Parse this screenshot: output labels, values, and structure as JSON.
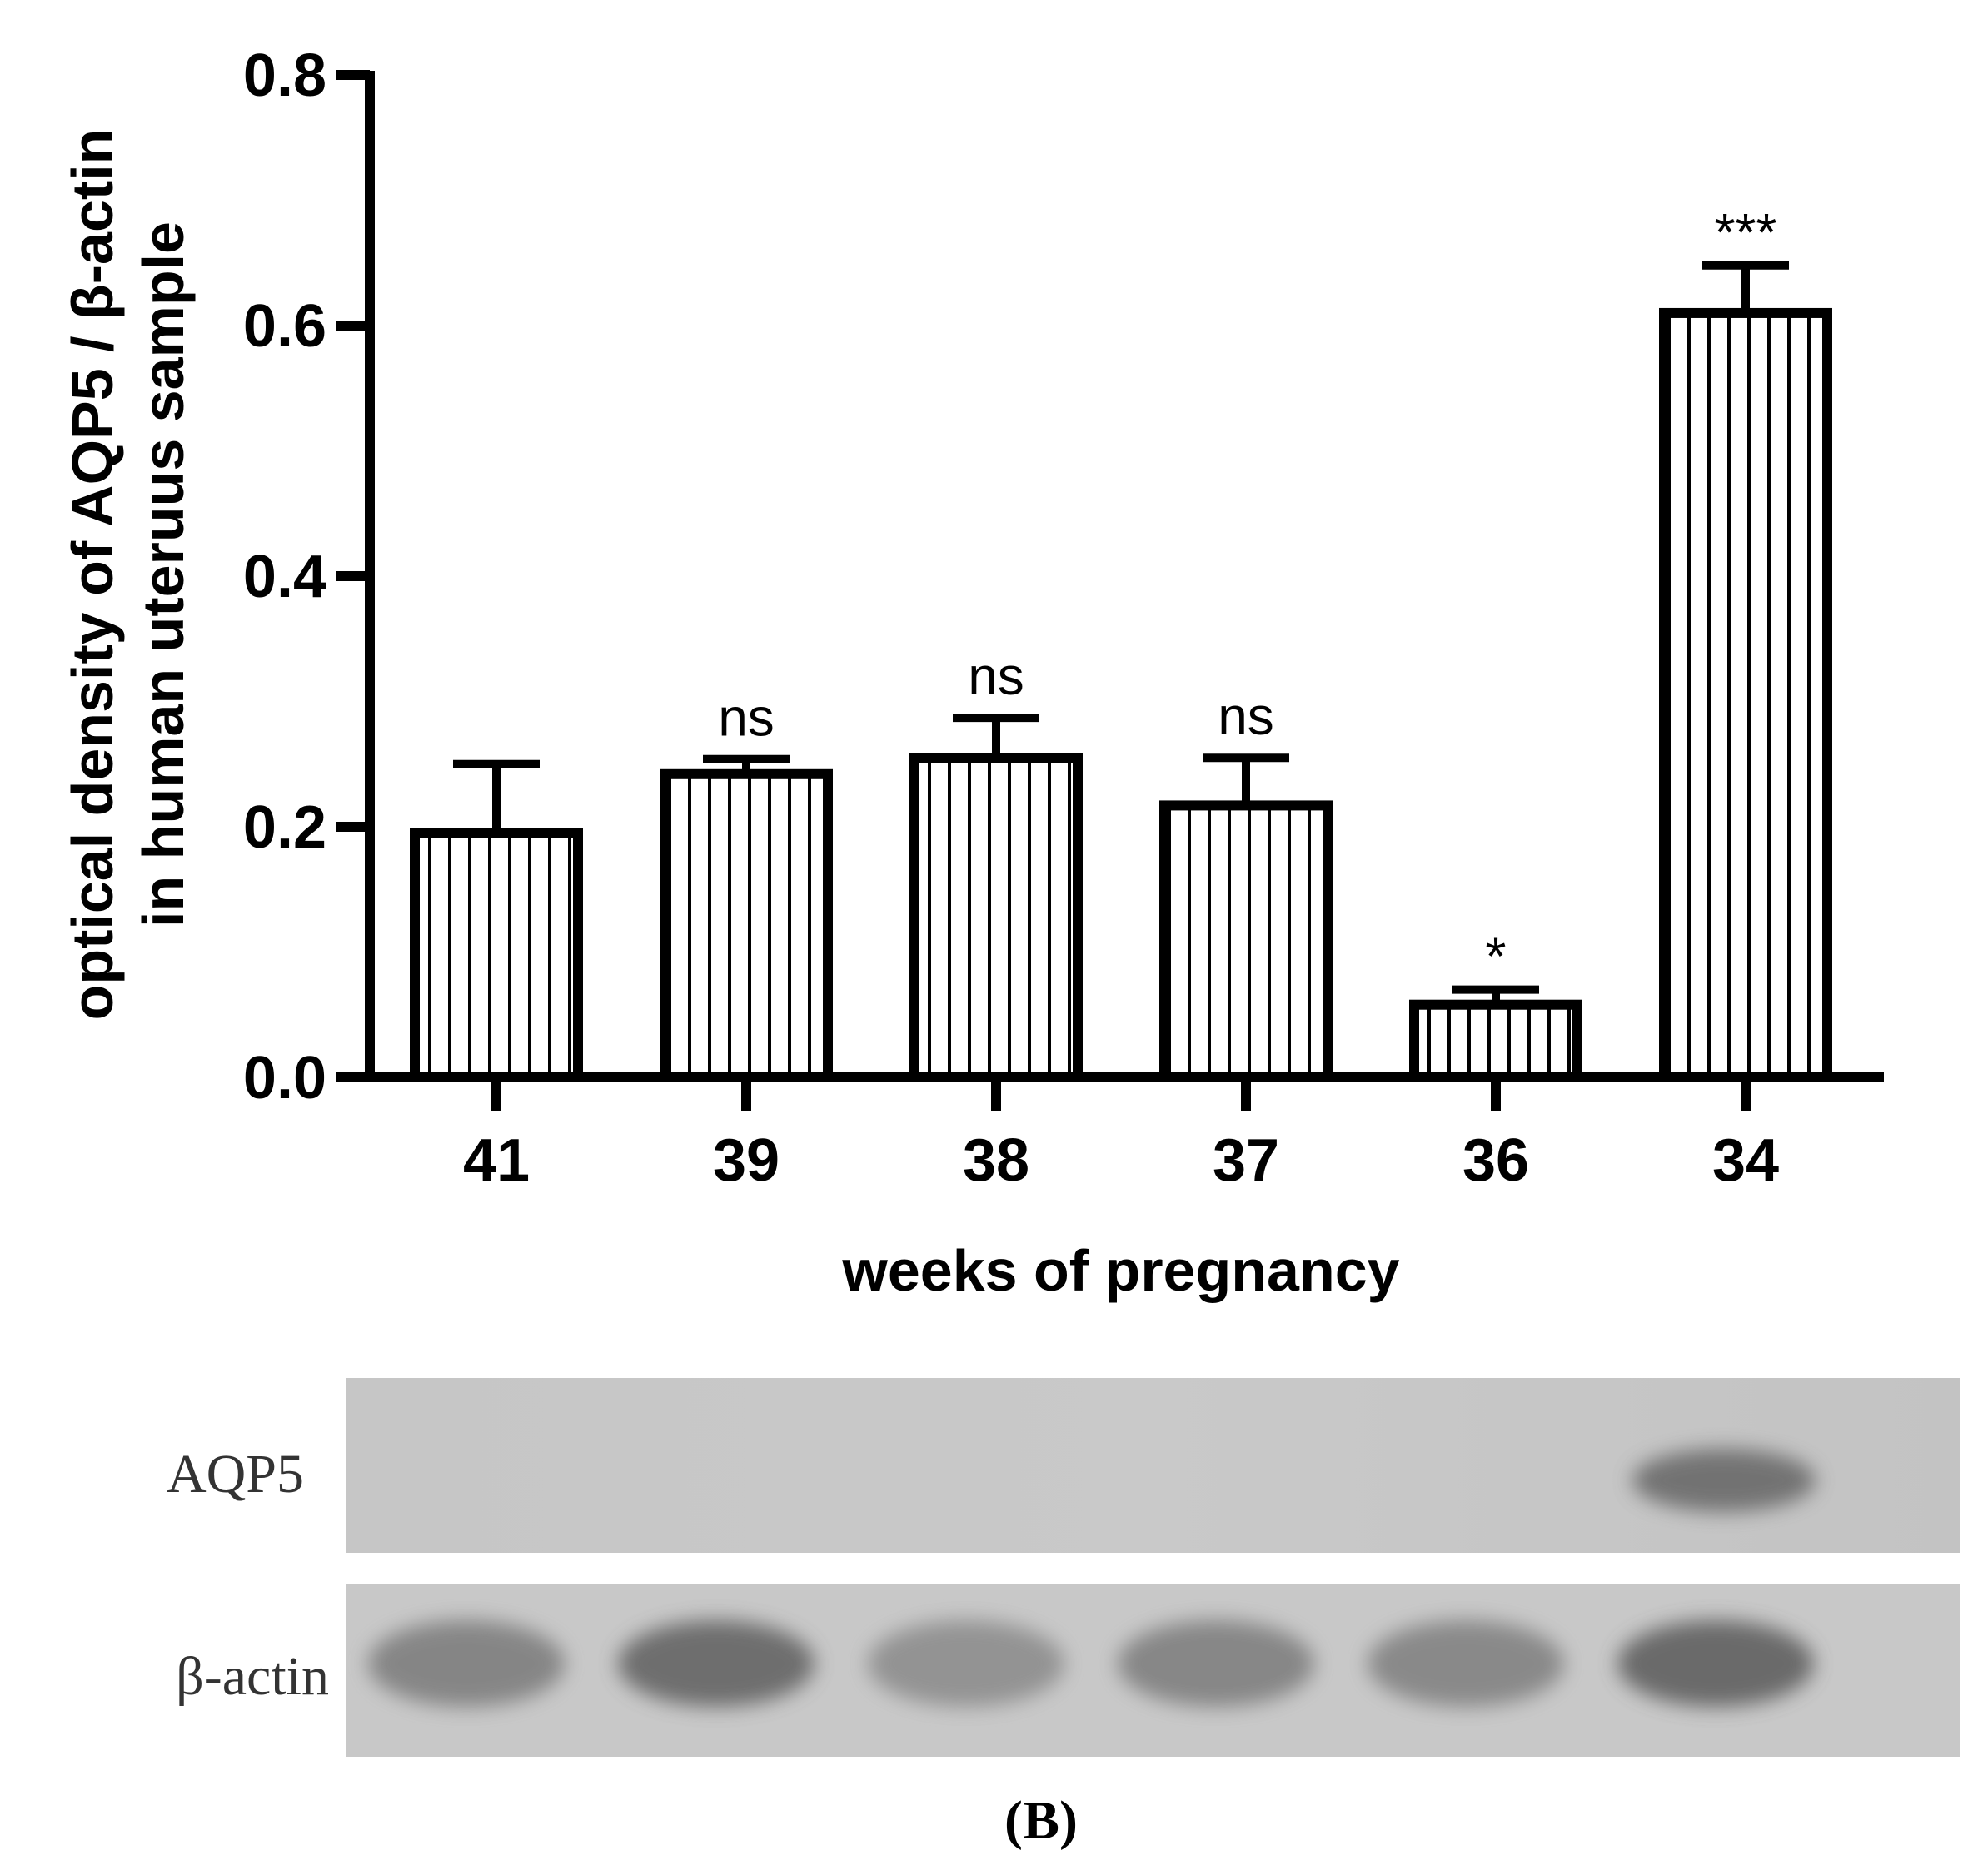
{
  "chart_data": {
    "type": "bar",
    "categories": [
      "41",
      "39",
      "38",
      "37",
      "36",
      "34"
    ],
    "values": [
      0.195,
      0.242,
      0.255,
      0.217,
      0.058,
      0.61
    ],
    "errors": [
      0.055,
      0.012,
      0.032,
      0.038,
      0.012,
      0.038
    ],
    "significance": [
      "",
      "ns",
      "ns",
      "ns",
      "*",
      "***"
    ],
    "xlabel": "weeks of pregnancy",
    "ylabel_lines": [
      "optical density of AQP5 / β-actin",
      "in human uteruus sample"
    ],
    "ylim": [
      0,
      0.8
    ],
    "yticks": [
      "0.0",
      "0.2",
      "0.4",
      "0.6",
      "0.8"
    ],
    "grid": false,
    "bar_fill": "vertical-hatch",
    "color": "#000000"
  },
  "blot": {
    "labels": [
      "AQP5",
      "β-actin"
    ],
    "aqp5_band_lanes": [
      6
    ],
    "panel_label": "(B)"
  }
}
